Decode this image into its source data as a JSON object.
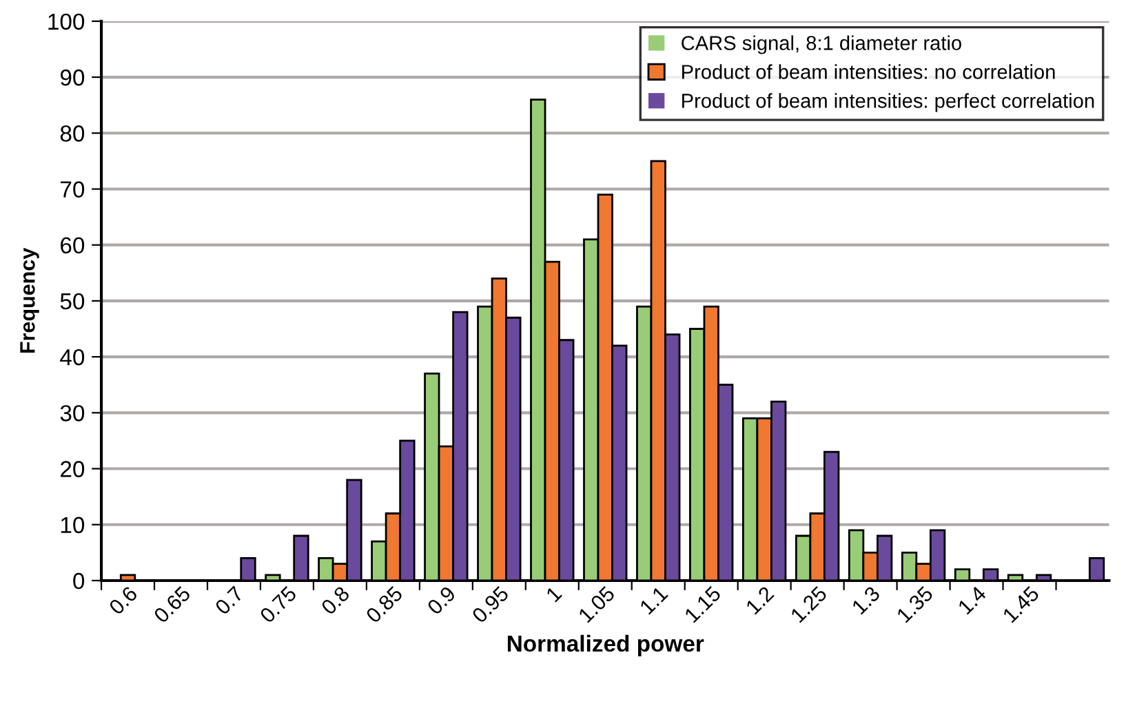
{
  "chart_data": {
    "type": "bar",
    "xlabel": "Normalized power",
    "ylabel": "Frequency",
    "categories": [
      "0.6",
      "0.65",
      "0.7",
      "0.75",
      "0.8",
      "0.85",
      "0.9",
      "0.95",
      "1",
      "1.05",
      "1.1",
      "1.15",
      "1.2",
      "1.25",
      "1.3",
      "1.35",
      "1.4",
      "1.45",
      null
    ],
    "series": [
      {
        "name": "CARS signal, 8:1 diameter ratio",
        "color": "#99cc77",
        "values": [
          0,
          0,
          0,
          1,
          4,
          7,
          37,
          49,
          86,
          61,
          49,
          45,
          29,
          8,
          9,
          5,
          2,
          1,
          0
        ]
      },
      {
        "name": "Product of beam intensities: no correlation",
        "color": "#f07830",
        "values": [
          1,
          0,
          0,
          0,
          3,
          12,
          24,
          54,
          57,
          69,
          75,
          49,
          29,
          12,
          5,
          3,
          0,
          0,
          0
        ]
      },
      {
        "name": "Product of beam intensities: perfect correlation",
        "color": "#6a4a9c",
        "values": [
          0,
          0,
          4,
          8,
          18,
          25,
          48,
          47,
          43,
          42,
          44,
          35,
          32,
          23,
          8,
          9,
          2,
          1,
          4
        ]
      }
    ],
    "ylim": [
      0,
      100
    ],
    "yticks": [
      0,
      10,
      20,
      30,
      40,
      50,
      60,
      70,
      80,
      90,
      100
    ],
    "grid": "y",
    "legend": "top right"
  }
}
